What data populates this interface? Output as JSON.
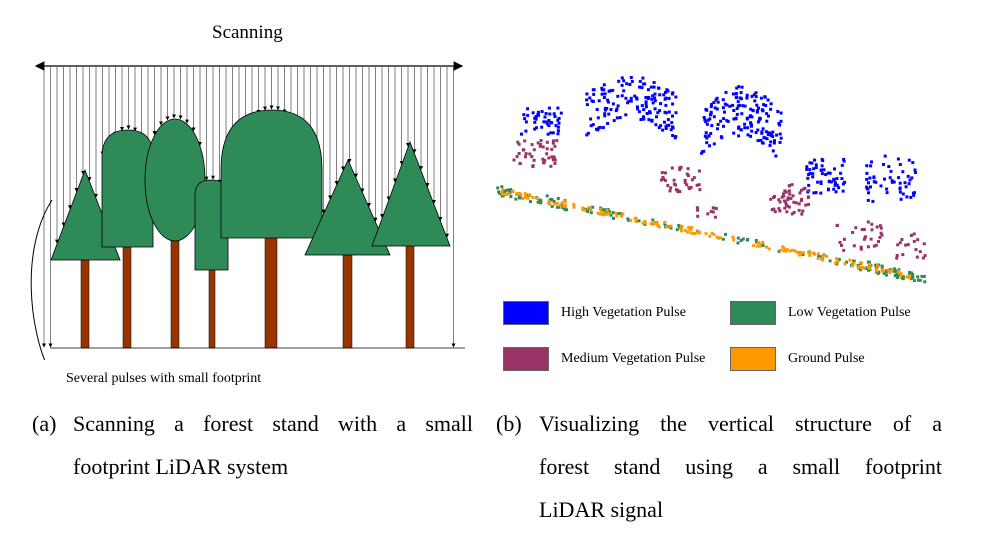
{
  "panel_a": {
    "scanning_label": "Scanning",
    "footprint_label": "Several pulses with small footprint",
    "caption_tag": "(a)",
    "caption_line1": "Scanning a forest stand with a small",
    "caption_line2": "footprint LiDAR system",
    "colors": {
      "canopy": "#2e8b57",
      "trunk": "#993300",
      "pulse_line": "#000000"
    }
  },
  "panel_b": {
    "caption_tag": "(b)",
    "caption_line1": "Visualizing the vertical structure of a",
    "caption_line2": "forest stand using a small footprint",
    "caption_line3": "LiDAR signal",
    "legend": [
      {
        "label": "High Vegetation Pulse",
        "color": "#0000ff"
      },
      {
        "label": "Low Vegetation Pulse",
        "color": "#2e8b57"
      },
      {
        "label": "Medium Vegetation Pulse",
        "color": "#993366"
      },
      {
        "label": "Ground Pulse",
        "color": "#ff9900"
      }
    ]
  }
}
